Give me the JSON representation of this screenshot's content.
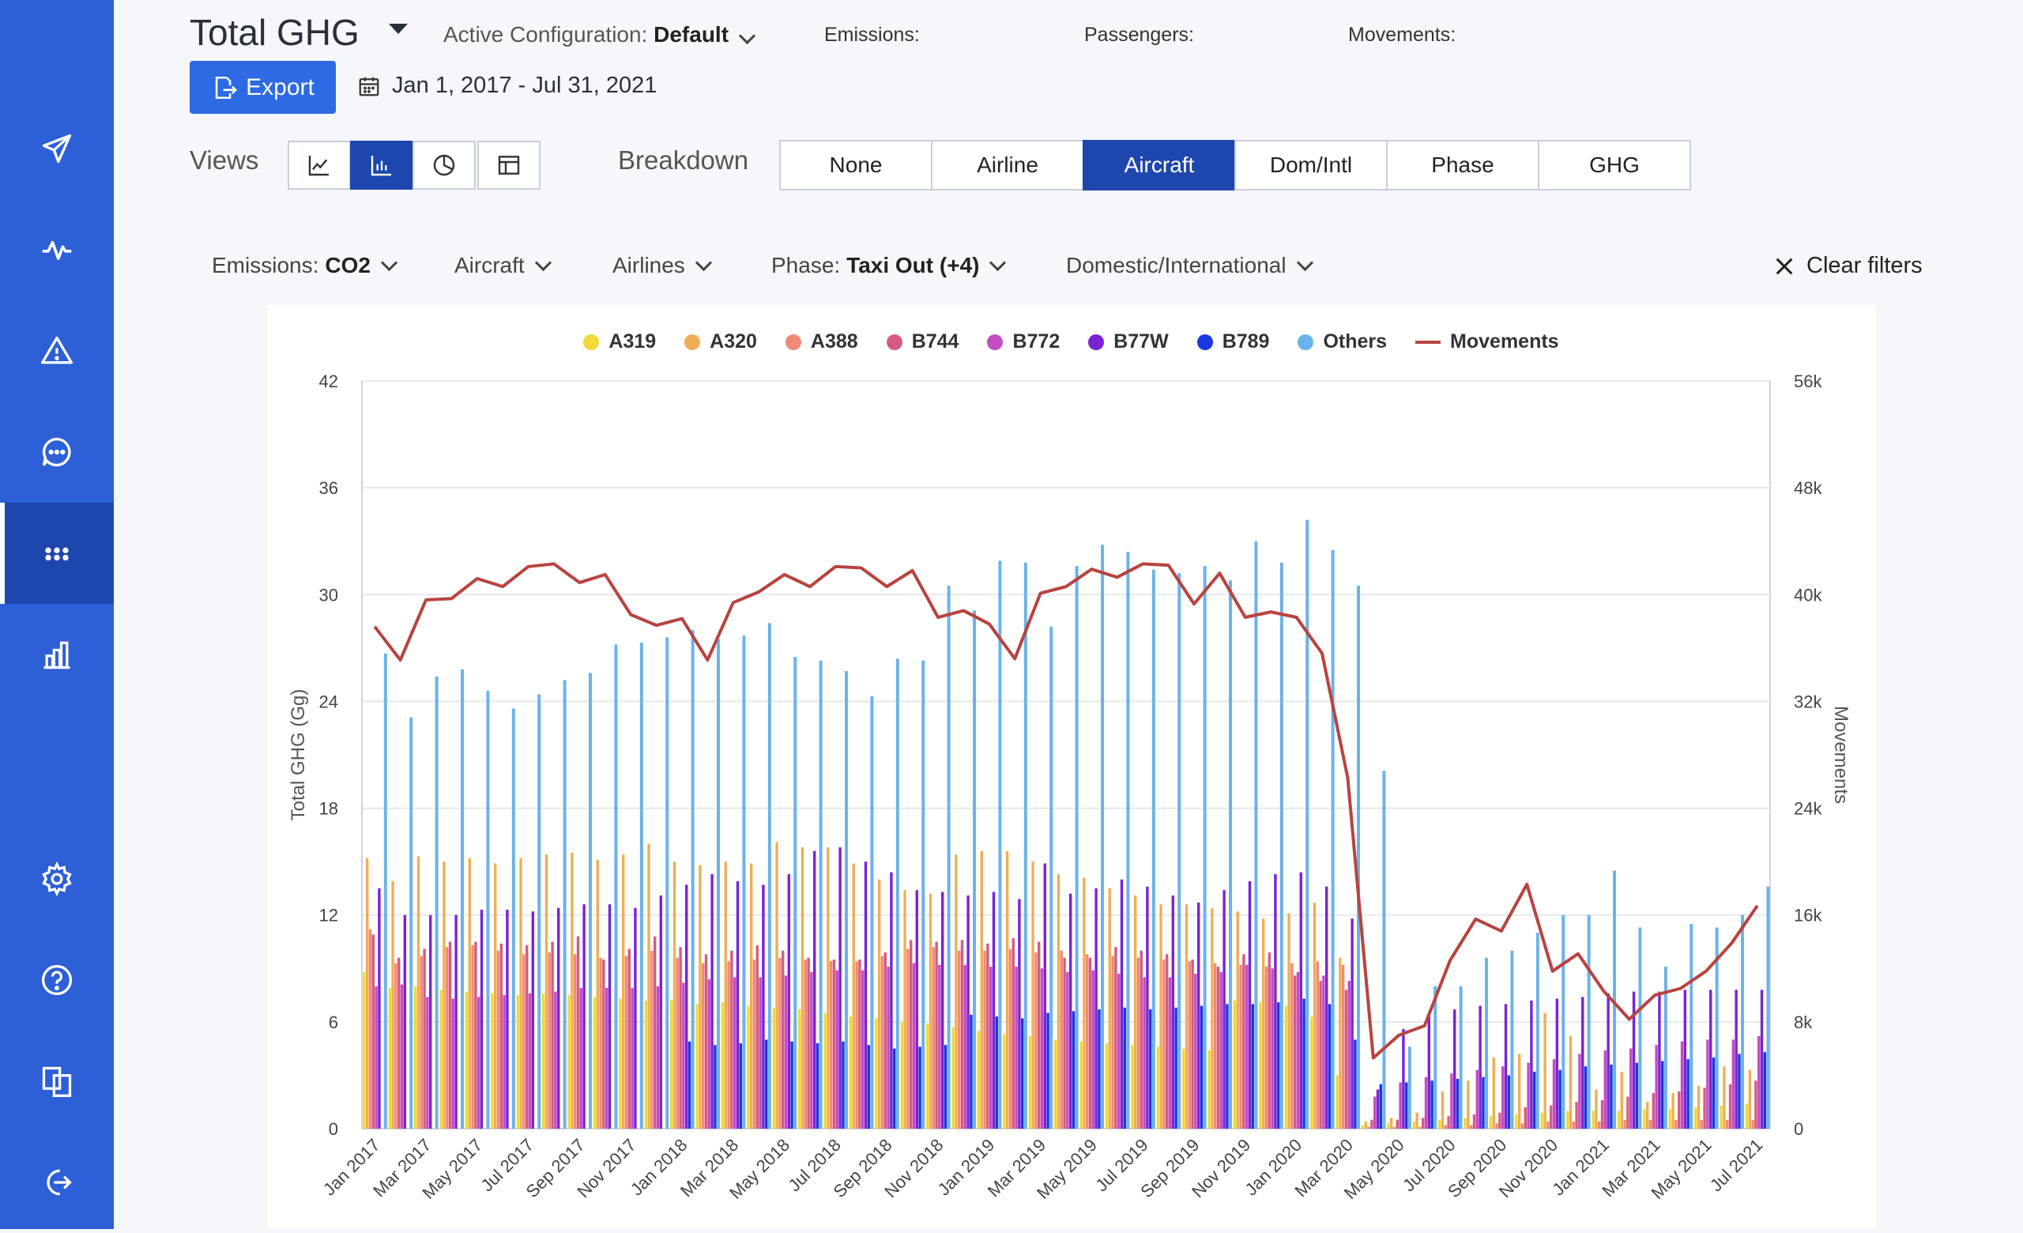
{
  "header": {
    "title": "Total GHG",
    "config_label": "Active Configuration:",
    "config_value": "Default",
    "kpis": {
      "emissions": "Emissions:",
      "passengers": "Passengers:",
      "movements": "Movements:"
    },
    "export_label": "Export",
    "date_range": "Jan 1, 2017 - Jul 31, 2021"
  },
  "views": {
    "label": "Views",
    "options": [
      "line-chart-icon",
      "bar-chart-icon",
      "pie-chart-icon",
      "table-icon"
    ],
    "active": 1
  },
  "breakdown": {
    "label": "Breakdown",
    "options": [
      "None",
      "Airline",
      "Aircraft",
      "Dom/Intl",
      "Phase",
      "GHG"
    ],
    "active": 2
  },
  "filters": {
    "emissions": {
      "label": "Emissions:",
      "value": "CO2"
    },
    "aircraft": {
      "label": "Aircraft"
    },
    "airlines": {
      "label": "Airlines"
    },
    "phase": {
      "label": "Phase:",
      "value": "Taxi Out (+4)"
    },
    "domintl": {
      "label": "Domestic/International"
    },
    "clear": "Clear filters"
  },
  "sidebar": {
    "items": [
      "plane-icon",
      "activity-icon",
      "warning-icon",
      "chat-icon",
      "dots-icon",
      "bar-chart-icon",
      "gear-icon",
      "help-icon",
      "documents-icon",
      "logout-icon"
    ],
    "active": 4
  },
  "colors": {
    "accent": "#2d5fd6",
    "active": "#1e47ad",
    "movements": "#b8433f"
  },
  "chart_data": {
    "type": "bar",
    "title": "",
    "ylabel": "Total GHG (Gg)",
    "y2label": "Movements",
    "ylim": [
      0,
      42
    ],
    "y2lim": [
      0,
      56000
    ],
    "yticks": [
      "0",
      "6",
      "12",
      "18",
      "24",
      "30",
      "36",
      "42"
    ],
    "y2ticks": [
      "0",
      "8k",
      "16k",
      "24k",
      "32k",
      "40k",
      "48k",
      "56k"
    ],
    "xtick_labels": [
      "Jan 2017",
      "Mar 2017",
      "May 2017",
      "Jul 2017",
      "Sep 2017",
      "Nov 2017",
      "Jan 2018",
      "Mar 2018",
      "May 2018",
      "Jul 2018",
      "Sep 2018",
      "Nov 2018",
      "Jan 2019",
      "Mar 2019",
      "May 2019",
      "Jul 2019",
      "Sep 2019",
      "Nov 2019",
      "Jan 2020",
      "Mar 2020",
      "May 2020",
      "Jul 2020",
      "Sep 2020",
      "Nov 2020",
      "Jan 2021",
      "Mar 2021",
      "May 2021",
      "Jul 2021"
    ],
    "categories": [
      "Jan 2017",
      "Feb 2017",
      "Mar 2017",
      "Apr 2017",
      "May 2017",
      "Jun 2017",
      "Jul 2017",
      "Aug 2017",
      "Sep 2017",
      "Oct 2017",
      "Nov 2017",
      "Dec 2017",
      "Jan 2018",
      "Feb 2018",
      "Mar 2018",
      "Apr 2018",
      "May 2018",
      "Jun 2018",
      "Jul 2018",
      "Aug 2018",
      "Sep 2018",
      "Oct 2018",
      "Nov 2018",
      "Dec 2018",
      "Jan 2019",
      "Feb 2019",
      "Mar 2019",
      "Apr 2019",
      "May 2019",
      "Jun 2019",
      "Jul 2019",
      "Aug 2019",
      "Sep 2019",
      "Oct 2019",
      "Nov 2019",
      "Dec 2019",
      "Jan 2020",
      "Feb 2020",
      "Mar 2020",
      "Apr 2020",
      "May 2020",
      "Jun 2020",
      "Jul 2020",
      "Aug 2020",
      "Sep 2020",
      "Oct 2020",
      "Nov 2020",
      "Dec 2020",
      "Jan 2021",
      "Feb 2021",
      "Mar 2021",
      "Apr 2021",
      "May 2021",
      "Jun 2021",
      "Jul 2021"
    ],
    "legend_position": "top",
    "grid": true,
    "series": [
      {
        "name": "A319",
        "color": "#f2d93a",
        "values": [
          8.8,
          7.9,
          8.0,
          7.8,
          7.7,
          7.6,
          7.5,
          7.6,
          7.5,
          7.4,
          7.3,
          7.2,
          7.2,
          7.0,
          7.1,
          6.9,
          6.8,
          6.7,
          6.5,
          6.3,
          6.2,
          6.0,
          5.9,
          5.7,
          5.5,
          5.3,
          5.2,
          5.0,
          4.9,
          4.8,
          4.7,
          4.6,
          4.5,
          4.4,
          7.2,
          7.1,
          6.9,
          6.3,
          3.0,
          0.2,
          0.3,
          0.4,
          0.5,
          0.6,
          0.7,
          0.8,
          0.9,
          1.0,
          1.0,
          1.0,
          1.1,
          1.1,
          1.2,
          1.3,
          1.4
        ]
      },
      {
        "name": "A320",
        "color": "#f0ae54",
        "values": [
          15.2,
          13.9,
          15.3,
          15.0,
          15.2,
          14.9,
          15.2,
          15.4,
          15.5,
          15.1,
          15.4,
          16.0,
          15.0,
          14.8,
          15.0,
          14.9,
          16.1,
          15.8,
          15.8,
          14.9,
          14.0,
          13.4,
          13.2,
          15.4,
          15.6,
          15.6,
          15.0,
          14.3,
          14.1,
          13.5,
          13.1,
          12.6,
          12.6,
          12.4,
          12.2,
          11.8,
          12.1,
          12.7,
          9.6,
          0.4,
          0.6,
          0.9,
          2.1,
          2.7,
          4.0,
          4.2,
          6.5,
          5.2,
          2.2,
          3.2,
          1.5,
          2.0,
          2.4,
          3.5,
          3.3
        ]
      },
      {
        "name": "A388",
        "color": "#ef8a78",
        "values": [
          11.2,
          9.3,
          9.7,
          10.2,
          10.3,
          10.0,
          9.8,
          9.9,
          9.8,
          9.6,
          9.7,
          10.0,
          9.6,
          9.3,
          9.4,
          9.5,
          9.6,
          9.5,
          9.4,
          9.4,
          9.7,
          10.1,
          10.2,
          10.0,
          10.0,
          10.1,
          9.9,
          10.0,
          9.8,
          9.7,
          9.6,
          9.5,
          9.4,
          9.3,
          9.2,
          9.1,
          9.3,
          9.4,
          9.2,
          0.1,
          0.1,
          0.1,
          0.2,
          0.2,
          0.3,
          0.3,
          0.4,
          0.4,
          0.4,
          0.5,
          0.5,
          0.5,
          0.5,
          0.5,
          0.5
        ]
      },
      {
        "name": "B744",
        "color": "#d55a86",
        "values": [
          10.9,
          9.6,
          10.1,
          10.5,
          10.5,
          10.4,
          10.3,
          10.5,
          10.8,
          9.5,
          10.1,
          10.8,
          10.2,
          9.8,
          10.0,
          10.3,
          10.0,
          9.6,
          9.5,
          9.5,
          9.9,
          10.6,
          10.5,
          10.6,
          10.4,
          10.7,
          10.5,
          9.6,
          9.6,
          10.2,
          10.0,
          9.8,
          9.5,
          9.1,
          9.8,
          9.9,
          8.6,
          8.3,
          7.8,
          0.5,
          0.5,
          0.6,
          0.7,
          0.8,
          0.9,
          1.2,
          1.3,
          1.5,
          1.6,
          1.8,
          2.0,
          2.1,
          2.3,
          2.5,
          2.7
        ]
      },
      {
        "name": "B772",
        "color": "#c24cc2",
        "values": [
          8.0,
          8.1,
          7.4,
          7.3,
          7.4,
          7.5,
          7.6,
          7.7,
          7.9,
          7.9,
          7.9,
          8.0,
          8.2,
          8.4,
          8.5,
          8.5,
          8.6,
          8.8,
          8.9,
          8.9,
          9.1,
          9.3,
          9.2,
          9.2,
          9.1,
          9.1,
          9.0,
          8.8,
          8.9,
          8.7,
          8.5,
          8.5,
          8.7,
          8.8,
          9.2,
          9.0,
          8.8,
          8.6,
          8.3,
          1.8,
          2.6,
          2.9,
          3.1,
          3.3,
          3.5,
          3.7,
          3.9,
          4.2,
          4.4,
          4.5,
          4.7,
          4.9,
          5.0,
          5.0,
          5.2
        ]
      },
      {
        "name": "B77W",
        "color": "#7a22d6",
        "values": [
          13.5,
          12.0,
          12.0,
          12.0,
          12.3,
          12.3,
          12.2,
          12.4,
          12.6,
          12.6,
          12.4,
          13.1,
          13.7,
          14.3,
          13.9,
          13.7,
          14.3,
          15.6,
          15.8,
          15.0,
          14.4,
          13.4,
          13.3,
          13.1,
          13.3,
          12.9,
          14.9,
          13.2,
          13.5,
          14.0,
          13.6,
          13.1,
          12.7,
          13.4,
          13.9,
          14.3,
          14.4,
          13.6,
          11.8,
          2.2,
          5.6,
          6.3,
          6.7,
          6.9,
          7.0,
          7.2,
          7.3,
          7.4,
          7.6,
          7.7,
          7.7,
          7.8,
          7.8,
          7.8,
          7.8
        ]
      },
      {
        "name": "B789",
        "color": "#1838e0",
        "values": [
          0,
          0,
          0,
          0,
          0,
          0,
          0,
          0,
          0,
          0,
          0,
          0,
          4.9,
          4.7,
          4.8,
          5.0,
          4.9,
          4.8,
          4.9,
          4.7,
          4.5,
          4.6,
          4.7,
          6.4,
          6.3,
          6.2,
          6.5,
          6.6,
          6.7,
          6.8,
          6.7,
          6.8,
          6.9,
          7.0,
          7.0,
          7.1,
          7.3,
          7.0,
          5.0,
          2.5,
          2.6,
          2.7,
          2.8,
          2.9,
          3.0,
          3.2,
          3.3,
          3.5,
          3.6,
          3.7,
          3.8,
          3.9,
          4.0,
          4.2,
          4.3
        ]
      },
      {
        "name": "Others",
        "color": "#6bb3e8",
        "values": [
          26.7,
          23.1,
          25.4,
          25.8,
          24.6,
          23.6,
          24.4,
          25.2,
          25.6,
          27.2,
          27.3,
          27.6,
          28.0,
          27.5,
          27.7,
          28.4,
          26.5,
          26.3,
          25.7,
          24.3,
          26.4,
          26.3,
          30.5,
          29.1,
          31.9,
          31.8,
          28.2,
          31.6,
          32.8,
          32.4,
          31.4,
          31.2,
          31.6,
          30.8,
          33.0,
          31.8,
          34.2,
          32.5,
          30.5,
          20.1,
          4.6,
          8.0,
          8.0,
          9.6,
          10.0,
          11.0,
          12.0,
          12.0,
          14.5,
          11.3,
          9.1,
          11.5,
          11.3,
          12.0,
          13.6
        ]
      },
      {
        "name": "Movements",
        "color": "#b8433f",
        "type": "line",
        "axis": "right",
        "values": [
          37600,
          35100,
          39600,
          39700,
          41200,
          40600,
          42100,
          42300,
          40900,
          41500,
          38500,
          37700,
          38200,
          35100,
          39400,
          40200,
          41500,
          40600,
          42100,
          42000,
          40600,
          41800,
          38300,
          38800,
          37800,
          35200,
          40100,
          40600,
          41900,
          41300,
          42300,
          42200,
          39300,
          41600,
          38300,
          38700,
          38300,
          35600,
          26300,
          5300,
          7000,
          7700,
          12600,
          15700,
          14800,
          18300,
          11800,
          13100,
          10300,
          8200,
          10000,
          10500,
          11800,
          13900,
          16700
        ]
      }
    ]
  }
}
